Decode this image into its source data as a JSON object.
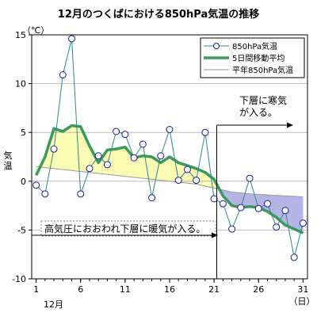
{
  "chart_data": {
    "type": "line",
    "title": "12月のつくばにおける850hPa気温の推移",
    "unit_label": "（℃）",
    "ylabel": "気温",
    "x_tick_labels": [
      "1",
      "6",
      "11",
      "16",
      "21",
      "26",
      "31"
    ],
    "x_ticks": [
      1,
      6,
      11,
      16,
      21,
      26,
      31
    ],
    "x_month_label": "12月",
    "x_unit_label": "（日）",
    "xlim": [
      0.5,
      31.5
    ],
    "ylim": [
      -10,
      15
    ],
    "y_ticks": [
      -10,
      -5,
      0,
      5,
      10,
      15
    ],
    "grid": true,
    "legend_position": "top-right",
    "x": [
      1,
      2,
      3,
      4,
      5,
      6,
      7,
      8,
      9,
      10,
      11,
      12,
      13,
      14,
      15,
      16,
      17,
      18,
      19,
      20,
      21,
      22,
      23,
      24,
      25,
      26,
      27,
      28,
      29,
      30,
      31
    ],
    "series": [
      {
        "name": "850hPa気温",
        "style": "marker-line",
        "color": "#2a8a8a",
        "marker_color": "#1a1aa0",
        "values": [
          -0.4,
          -1.3,
          3.3,
          10.9,
          14.6,
          -1.3,
          1.3,
          2.6,
          1.7,
          5.1,
          4.8,
          2.4,
          3.8,
          -1.7,
          2.6,
          5.3,
          0.1,
          1.2,
          0.1,
          5.0,
          -1.8,
          -2.3,
          -4.9,
          -2.7,
          0.3,
          -2.8,
          -2.3,
          -4.7,
          -3.0,
          -7.8,
          -4.3
        ]
      },
      {
        "name": "5日間移動平均",
        "style": "thick-line",
        "color": "#3a9a5a",
        "values": [
          0.6,
          2.5,
          5.4,
          5.1,
          5.7,
          5.6,
          3.6,
          1.9,
          3.2,
          3.3,
          3.5,
          2.4,
          2.6,
          2.5,
          1.9,
          2.5,
          1.9,
          1.6,
          1.3,
          0.9,
          0.2,
          -1.5,
          -2.5,
          -2.7,
          -2.6,
          -2.7,
          -3.1,
          -3.7,
          -4.5,
          -4.9,
          -5.3
        ]
      },
      {
        "name": "平年850hPa気温",
        "style": "thin-line",
        "color": "#9a9a9a",
        "values": [
          1.5,
          1.4,
          1.3,
          1.2,
          1.1,
          1.0,
          0.9,
          0.8,
          0.7,
          0.6,
          0.5,
          0.4,
          0.3,
          0.2,
          0.1,
          0.0,
          -0.1,
          -0.2,
          -0.3,
          -0.5,
          -0.7,
          -0.9,
          -1.1,
          -1.2,
          -1.3,
          -1.35,
          -1.4,
          -1.45,
          -1.5,
          -1.55,
          -1.6
        ]
      }
    ],
    "fill": {
      "above_color": "#fbfbb4",
      "below_color": "#b4b4e6",
      "split_x": 21.3
    },
    "divider_x": 21.3,
    "annotations": [
      {
        "id": "annotation-cold",
        "lines": [
          "下層に寒気",
          "が入る。"
        ]
      },
      {
        "id": "annotation-warm",
        "lines": [
          "高気圧におおわれ下層に暖気が入る。"
        ]
      }
    ]
  }
}
